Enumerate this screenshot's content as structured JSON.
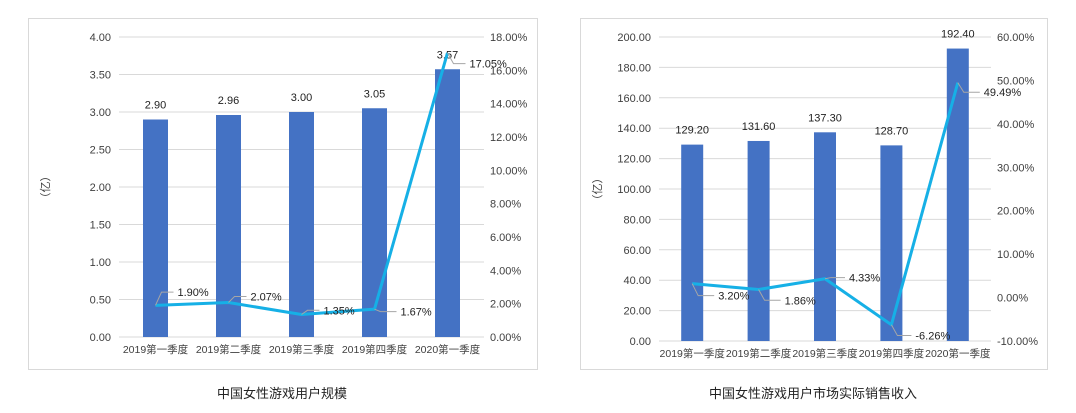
{
  "charts": [
    {
      "caption": "中国女性游戏用户规模",
      "chart_data": {
        "type": "bar",
        "categories": [
          "2019第一季度",
          "2019第二季度",
          "2019第三季度",
          "2019第四季度",
          "2020第一季度"
        ],
        "ylabel": "（亿）",
        "ylim": [
          0,
          4
        ],
        "y_ticks": [
          "0.00",
          "0.50",
          "1.00",
          "1.50",
          "2.00",
          "2.50",
          "3.00",
          "3.50",
          "4.00"
        ],
        "y2lim": [
          0,
          18
        ],
        "y2_ticks": [
          "0.00%",
          "2.00%",
          "4.00%",
          "6.00%",
          "8.00%",
          "10.00%",
          "12.00%",
          "14.00%",
          "16.00%",
          "18.00%"
        ],
        "series": [
          {
            "kind": "bar",
            "axis": "left",
            "values": [
              2.9,
              2.96,
              3.0,
              3.05,
              3.57
            ],
            "labels": [
              "2.90",
              "2.96",
              "3.00",
              "3.05",
              "3.57"
            ]
          },
          {
            "kind": "line",
            "axis": "right",
            "values": [
              1.9,
              2.07,
              1.35,
              1.67,
              17.05
            ],
            "labels": [
              "1.90%",
              "2.07%",
              "1.35%",
              "1.67%",
              "17.05%"
            ]
          }
        ],
        "grid": true,
        "colors": {
          "bar": "#4472c4",
          "line": "#16b0e6",
          "grid": "#d9d9d9",
          "text": "#404040"
        }
      }
    },
    {
      "caption": "中国女性游戏用户市场实际销售收入",
      "chart_data": {
        "type": "bar",
        "categories": [
          "2019第一季度",
          "2019第二季度",
          "2019第三季度",
          "2019第四季度",
          "2020第一季度"
        ],
        "ylabel": "（亿）",
        "ylim": [
          0,
          200
        ],
        "y_ticks": [
          "0.00",
          "20.00",
          "40.00",
          "60.00",
          "80.00",
          "100.00",
          "120.00",
          "140.00",
          "160.00",
          "180.00",
          "200.00"
        ],
        "y2lim": [
          -10,
          60
        ],
        "y2_ticks": [
          "-10.00%",
          "0.00%",
          "10.00%",
          "20.00%",
          "30.00%",
          "40.00%",
          "50.00%",
          "60.00%"
        ],
        "series": [
          {
            "kind": "bar",
            "axis": "left",
            "values": [
              129.2,
              131.6,
              137.3,
              128.7,
              192.4
            ],
            "labels": [
              "129.20",
              "131.60",
              "137.30",
              "128.70",
              "192.40"
            ]
          },
          {
            "kind": "line",
            "axis": "right",
            "values": [
              3.2,
              1.86,
              4.33,
              -6.26,
              49.49
            ],
            "labels": [
              "3.20%",
              "1.86%",
              "4.33%",
              "-6.26%",
              "49.49%"
            ]
          }
        ],
        "grid": true,
        "colors": {
          "bar": "#4472c4",
          "line": "#16b0e6",
          "grid": "#d9d9d9",
          "text": "#404040"
        }
      }
    }
  ]
}
